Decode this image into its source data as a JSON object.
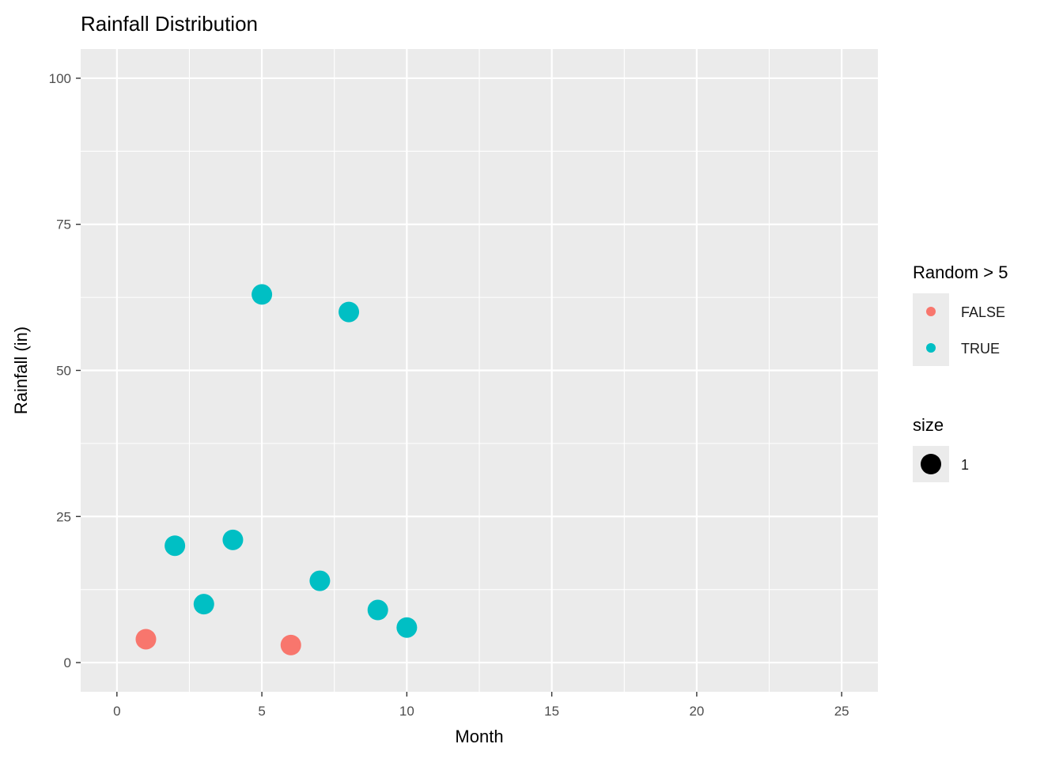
{
  "chart_data": {
    "type": "scatter",
    "title": "Rainfall Distribution",
    "xlabel": "Month",
    "ylabel": "Rainfall (in)",
    "xlim": [
      -1.25,
      26.25
    ],
    "ylim": [
      -5,
      105
    ],
    "x_ticks": [
      0,
      5,
      10,
      15,
      20,
      25
    ],
    "y_ticks": [
      0,
      25,
      50,
      75,
      100
    ],
    "x_tick_labels": [
      "0",
      "5",
      "10",
      "15",
      "20",
      "25"
    ],
    "y_tick_labels": [
      "0",
      "25",
      "50",
      "75",
      "100"
    ],
    "grid": true,
    "points": [
      {
        "x": 1,
        "y": 4,
        "group": "FALSE"
      },
      {
        "x": 2,
        "y": 20,
        "group": "TRUE"
      },
      {
        "x": 3,
        "y": 10,
        "group": "TRUE"
      },
      {
        "x": 4,
        "y": 21,
        "group": "TRUE"
      },
      {
        "x": 5,
        "y": 63,
        "group": "TRUE"
      },
      {
        "x": 6,
        "y": 3,
        "group": "FALSE"
      },
      {
        "x": 7,
        "y": 14,
        "group": "TRUE"
      },
      {
        "x": 8,
        "y": 60,
        "group": "TRUE"
      },
      {
        "x": 9,
        "y": 9,
        "group": "TRUE"
      },
      {
        "x": 10,
        "y": 6,
        "group": "TRUE"
      }
    ],
    "legend": {
      "placement": "right",
      "color": {
        "title": "Random > 5",
        "entries": [
          {
            "label": "FALSE",
            "color": "#F8766D"
          },
          {
            "label": "TRUE",
            "color": "#00BFC4"
          }
        ]
      },
      "size": {
        "title": "size",
        "entries": [
          {
            "label": "1",
            "color": "#000000"
          }
        ]
      }
    },
    "panel_background": "#EBEBEB",
    "grid_color": "#FFFFFF"
  }
}
